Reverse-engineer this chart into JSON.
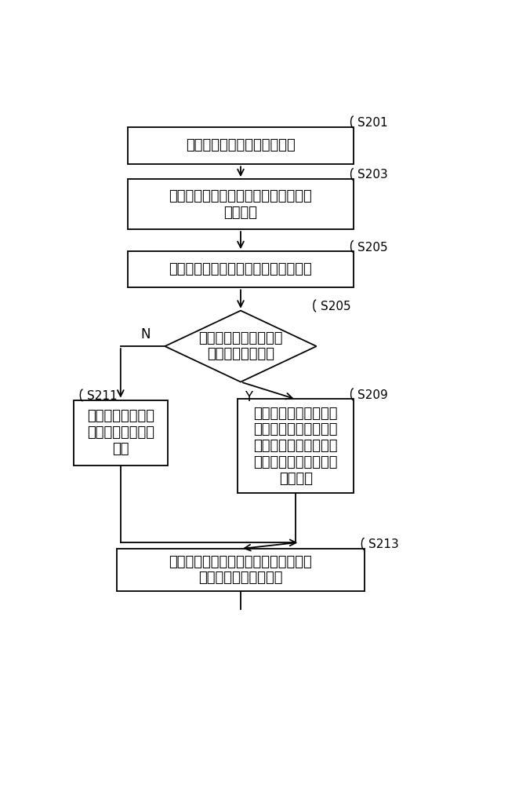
{
  "bg_color": "#ffffff",
  "S201_text": "获取物联网设备上报的数据包",
  "S203_text": "根据设备标识，获取物联网设备的当前\n设备模型",
  "S205_text": "获取设备模型与元数据模型的映射关系",
  "DIA_text": "从多个设备模型中确定\n存在当前设备模型",
  "S211_text": "从第一描述字段中\n获取第一存储区域\n信息",
  "S209_text": "根据对应关系将第一描\n述字段转换为对应的第\n一元数据字段；第一元\n数据字段包括第一存储\n区域信息",
  "S213_text": "根据第一存储区域信息，将运行数据写\n入对应的第一存储区域",
  "labels": {
    "S201": "S201",
    "S203": "S203",
    "S205r": "S205",
    "S205d": "S205",
    "S209": "S209",
    "S211": "S211",
    "S213": "S213"
  },
  "N_label": "N",
  "Y_label": "Y",
  "font_size_main": 13,
  "font_size_label": 11,
  "lw": 1.3
}
